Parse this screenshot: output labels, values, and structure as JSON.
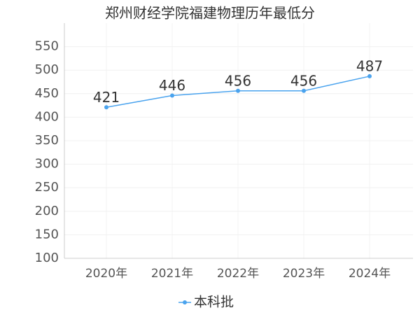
{
  "chart_data": {
    "type": "line",
    "title": "郑州财经学院福建物理历年最低分",
    "categories": [
      "2020年",
      "2021年",
      "2022年",
      "2023年",
      "2024年"
    ],
    "series": [
      {
        "name": "本科批",
        "color": "#4aa3ee",
        "values": [
          421,
          446,
          456,
          456,
          487
        ]
      }
    ],
    "ylim": [
      100,
      600
    ],
    "yticks": [
      100,
      150,
      200,
      250,
      300,
      350,
      400,
      450,
      500,
      550
    ],
    "grid": true
  }
}
